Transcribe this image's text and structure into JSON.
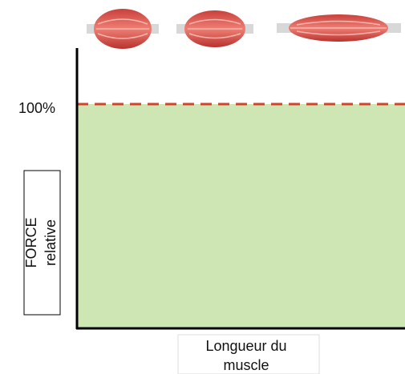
{
  "axis": {
    "tick_label": "100%",
    "y_label": [
      "FORCE",
      "relative"
    ],
    "x_label": [
      "Longueur du",
      "muscle"
    ]
  }
}
